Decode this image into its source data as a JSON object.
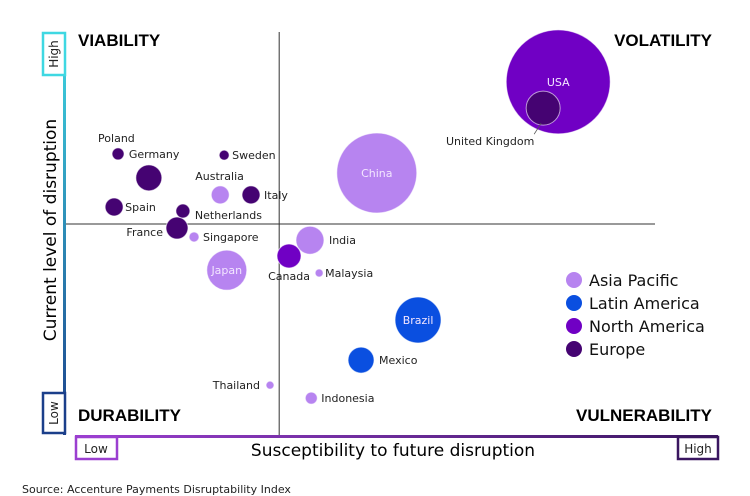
{
  "chart_data": {
    "type": "scatter",
    "xlabel": "Susceptibility to future disruption",
    "ylabel": "Current level of disruption",
    "x_low_label": "Low",
    "x_high_label": "High",
    "y_low_label": "Low",
    "y_high_label": "High",
    "xlim": [
      0,
      10
    ],
    "ylim": [
      0,
      10
    ],
    "dividers": {
      "x": 3.27,
      "y": 5.21
    },
    "quadrants": {
      "top_left": "VIABILITY",
      "top_right": "VOLATILITY",
      "bottom_left": "DURABILITY",
      "bottom_right": "VULNERABILITY"
    },
    "legend_position": "right",
    "series": [
      {
        "name": "Asia Pacific",
        "color": "#b784f0",
        "points": [
          {
            "label": "China",
            "x": 4.76,
            "y": 6.47,
            "size": 40
          },
          {
            "label": "Australia",
            "x": 2.37,
            "y": 5.93,
            "size": 9
          },
          {
            "label": "Singapore",
            "x": 1.97,
            "y": 4.89,
            "size": 5
          },
          {
            "label": "India",
            "x": 3.74,
            "y": 4.81,
            "size": 14
          },
          {
            "label": "Malaysia",
            "x": 3.88,
            "y": 4.0,
            "size": 4
          },
          {
            "label": "Japan",
            "x": 2.47,
            "y": 4.07,
            "size": 20
          },
          {
            "label": "Thailand",
            "x": 3.13,
            "y": 1.23,
            "size": 4
          },
          {
            "label": "Indonesia",
            "x": 3.76,
            "y": 0.91,
            "size": 6
          }
        ]
      },
      {
        "name": "Latin America",
        "color": "#0a4fe0",
        "points": [
          {
            "label": "Brazil",
            "x": 5.39,
            "y": 2.84,
            "size": 23
          },
          {
            "label": "Mexico",
            "x": 4.52,
            "y": 1.85,
            "size": 13
          }
        ]
      },
      {
        "name": "North America",
        "color": "#7000c4",
        "points": [
          {
            "label": "USA",
            "x": 7.53,
            "y": 8.72,
            "size": 52
          },
          {
            "label": "Canada",
            "x": 3.42,
            "y": 4.42,
            "size": 12
          }
        ]
      },
      {
        "name": "Europe",
        "color": "#450372",
        "points": [
          {
            "label": "United Kingdom",
            "x": 7.3,
            "y": 8.07,
            "size": 17
          },
          {
            "label": "Poland",
            "x": 0.81,
            "y": 6.94,
            "size": 6
          },
          {
            "label": "Germany",
            "x": 1.28,
            "y": 6.35,
            "size": 13
          },
          {
            "label": "Sweden",
            "x": 2.43,
            "y": 6.91,
            "size": 5
          },
          {
            "label": "Italy",
            "x": 2.84,
            "y": 5.93,
            "size": 9
          },
          {
            "label": "Spain",
            "x": 0.75,
            "y": 5.63,
            "size": 9
          },
          {
            "label": "Netherlands",
            "x": 1.8,
            "y": 5.53,
            "size": 7
          },
          {
            "label": "France",
            "x": 1.71,
            "y": 5.11,
            "size": 11
          }
        ]
      }
    ]
  },
  "source": "Source: Accenture Payments Disruptability  Index"
}
